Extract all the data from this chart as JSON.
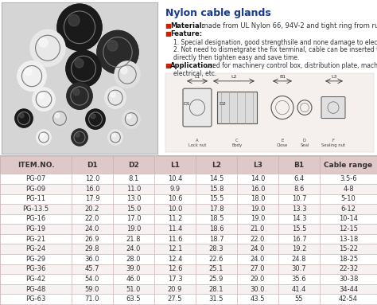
{
  "title": "Nylon cable glands",
  "mat_label": "Material:",
  "mat_text": " made from UL Nylon 66, 94V-2 and tight ring from rubber.",
  "feat_label": "Feature:",
  "feature_1": "1. Special designation, good strengthsile and none damage to electrical machine.",
  "feature_2": "2. Not need to dismetgrate the fix terminal, cable can be inserted through",
  "feature_2b": "directly then tighten easy and save time.",
  "app_label": "Application:",
  "app_text": " used for machinery control box, distribution plate, machine and",
  "app_text2": "electrical, etc.",
  "table_headers": [
    "ITEM.NO.",
    "D1",
    "D2",
    "L1",
    "L2",
    "L3",
    "B1",
    "Cable range"
  ],
  "table_rows": [
    [
      "PG-07",
      "12.0",
      "8.1",
      "10.4",
      "14.5",
      "14.0",
      "6.4",
      "3.5-6"
    ],
    [
      "PG-09",
      "16.0",
      "11.0",
      "9.9",
      "15.8",
      "16.0",
      "8.6",
      "4-8"
    ],
    [
      "PG-11",
      "17.9",
      "13.0",
      "10.6",
      "15.5",
      "18.0",
      "10.7",
      "5-10"
    ],
    [
      "PG-13.5",
      "20.2",
      "15.0",
      "10.0",
      "17.8",
      "19.0",
      "13.3",
      "6-12"
    ],
    [
      "PG-16",
      "22.0",
      "17.0",
      "11.2",
      "18.5",
      "19.0",
      "14.3",
      "10-14"
    ],
    [
      "PG-19",
      "24.0",
      "19.0",
      "11.4",
      "18.6",
      "21.0",
      "15.5",
      "12-15"
    ],
    [
      "PG-21",
      "26.9",
      "21.8",
      "11.6",
      "18.7",
      "22.0",
      "16.7",
      "13-18"
    ],
    [
      "PG-24",
      "29.8",
      "24.0",
      "12.1",
      "28.3",
      "24.0",
      "19.2",
      "15-22"
    ],
    [
      "PG-29",
      "36.0",
      "28.0",
      "12.4",
      "22.6",
      "24.0",
      "24.8",
      "18-25"
    ],
    [
      "PG-36",
      "45.7",
      "39.0",
      "12.6",
      "25.1",
      "27.0",
      "30.7",
      "22-32"
    ],
    [
      "PG-42",
      "54.0",
      "46.0",
      "17.3",
      "25.9",
      "29.0",
      "35.6",
      "30-38"
    ],
    [
      "PG-48",
      "59.0",
      "51.0",
      "20.9",
      "28.1",
      "30.0",
      "41.4",
      "34-44"
    ],
    [
      "PG-63",
      "71.0",
      "63.5",
      "27.5",
      "31.5",
      "43.5",
      "55",
      "42-54"
    ]
  ],
  "header_bg": "#dfc8c8",
  "row_bg_even": "#ffffff",
  "row_bg_odd": "#f7f2f2",
  "border_color": "#c8b0b0",
  "text_color": "#333333",
  "title_color": "#1a3a8f",
  "bullet_color": "#cc2200",
  "bold_label_color": "#111111",
  "bg_color": "#ffffff",
  "photo_bg": "#c8c8c8",
  "photo_border": "#aaaaaa",
  "diag_bg": "#f5f0ee"
}
